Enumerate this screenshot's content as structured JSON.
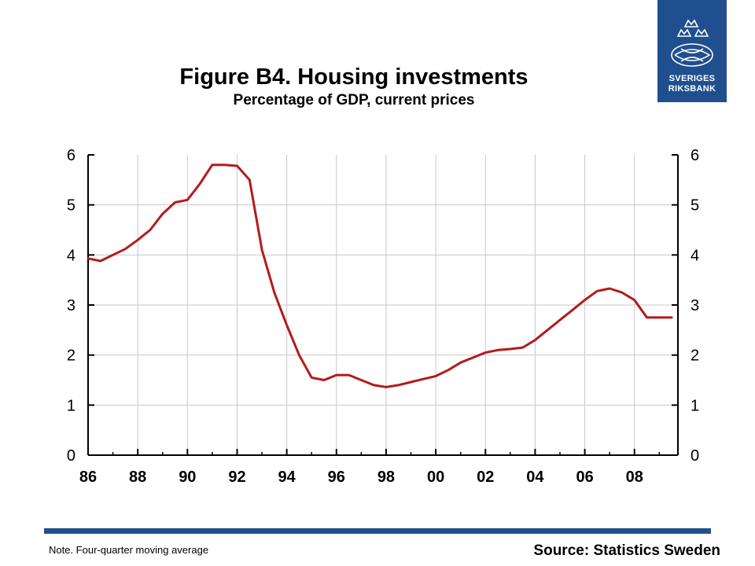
{
  "logo": {
    "line1": "SVERIGES",
    "line2": "RIKSBANK",
    "icon": "riksbank-crest-icon"
  },
  "header": {
    "title": "Figure B4. Housing investments",
    "subtitle": "Percentage of GDP, current prices"
  },
  "footer": {
    "note": "Note. Four-quarter moving average",
    "source": "Source: Statistics Sweden"
  },
  "colors": {
    "line": "#b31b1b",
    "brand": "#1f4f8f",
    "grid": "#c8c8c8"
  },
  "chart_data": {
    "type": "line",
    "title": "Figure B4. Housing investments",
    "subtitle": "Percentage of GDP, current prices",
    "xlabel": "",
    "ylabel": "",
    "xlim": [
      1986,
      2009.75
    ],
    "ylim": [
      0,
      6
    ],
    "grid": true,
    "legend": "none",
    "x_tick_labels": [
      "86",
      "88",
      "90",
      "92",
      "94",
      "96",
      "98",
      "00",
      "02",
      "04",
      "06",
      "08"
    ],
    "x_tick_values": [
      1986,
      1988,
      1990,
      1992,
      1994,
      1996,
      1998,
      2000,
      2002,
      2004,
      2006,
      2008
    ],
    "y_ticks": [
      0,
      1,
      2,
      3,
      4,
      5,
      6
    ],
    "series": [
      {
        "x": [
          1986.0,
          1986.5,
          1987.0,
          1987.5,
          1988.0,
          1988.5,
          1989.0,
          1989.5,
          1990.0,
          1990.5,
          1991.0,
          1991.5,
          1992.0,
          1992.5,
          1993.0,
          1993.5,
          1994.0,
          1994.5,
          1995.0,
          1995.5,
          1996.0,
          1996.5,
          1997.0,
          1997.5,
          1998.0,
          1998.5,
          1999.0,
          1999.5,
          2000.0,
          2000.5,
          2001.0,
          2001.5,
          2002.0,
          2002.5,
          2003.0,
          2003.5,
          2004.0,
          2004.5,
          2005.0,
          2005.5,
          2006.0,
          2006.5,
          2007.0,
          2007.5,
          2008.0,
          2008.5,
          2009.0,
          2009.5
        ],
        "values": [
          3.93,
          3.88,
          4.0,
          4.12,
          4.3,
          4.5,
          4.82,
          5.05,
          5.1,
          5.42,
          5.8,
          5.8,
          5.78,
          5.5,
          4.1,
          3.25,
          2.6,
          2.0,
          1.55,
          1.5,
          1.6,
          1.6,
          1.5,
          1.4,
          1.36,
          1.4,
          1.46,
          1.52,
          1.58,
          1.7,
          1.85,
          1.95,
          2.05,
          2.1,
          2.12,
          2.15,
          2.3,
          2.5,
          2.7,
          2.9,
          3.1,
          3.28,
          3.33,
          3.25,
          3.1,
          2.75,
          2.75,
          2.75
        ]
      }
    ]
  }
}
